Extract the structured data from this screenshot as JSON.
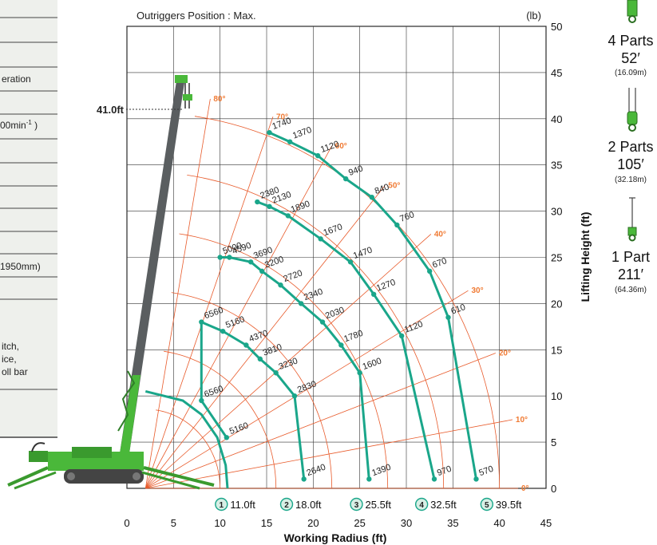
{
  "panel": {
    "frag1": "eration",
    "frag2": "00min",
    "frag2_sup": "-1",
    "frag2_tail": " )",
    "frag3": "1950mm)",
    "frag4a": "itch,",
    "frag4b": "ice,",
    "frag4c": "oll bar"
  },
  "chart_data": {
    "type": "line",
    "title": "Outriggers Position : Max.",
    "unit_label": "(lb)",
    "xlabel": "Working Radius (ft)",
    "ylabel": "Lifting Height (ft)",
    "xlim": [
      0,
      45
    ],
    "ylim": [
      0,
      50
    ],
    "xticks": [
      0,
      5,
      10,
      15,
      20,
      25,
      30,
      35,
      40,
      45
    ],
    "yticks": [
      0,
      5,
      10,
      15,
      20,
      25,
      30,
      35,
      40,
      45,
      50
    ],
    "grid": true,
    "pivot": [
      2.0,
      0.0
    ],
    "height_marker": "41.0ft",
    "angle_labels": [
      "80°",
      "70°",
      "60°",
      "50°",
      "40°",
      "30°",
      "20°",
      "10°",
      "0°"
    ],
    "boom_lengths": [
      {
        "index": "1",
        "label": "11.0ft"
      },
      {
        "index": "2",
        "label": "18.0ft"
      },
      {
        "index": "3",
        "label": "25.5ft"
      },
      {
        "index": "4",
        "label": "32.5ft"
      },
      {
        "index": "5",
        "label": "39.5ft"
      }
    ],
    "series": [
      {
        "values": [
          {
            "x": 10.7,
            "y": 5.5,
            "load": "5160"
          },
          {
            "x": 8.0,
            "y": 9.5,
            "load": "6560"
          },
          {
            "x": 8.0,
            "y": 18.0,
            "load": "6560"
          },
          {
            "x": 10.3,
            "y": 17.0,
            "load": "5160"
          },
          {
            "x": 12.8,
            "y": 15.5,
            "load": "4370"
          },
          {
            "x": 14.3,
            "y": 14.0,
            "load": "3810"
          },
          {
            "x": 16.0,
            "y": 12.5,
            "load": "3230"
          },
          {
            "x": 18.0,
            "y": 10.0,
            "load": "2830"
          },
          {
            "x": 19.0,
            "y": 1.0,
            "load": "2640"
          }
        ]
      },
      {
        "values": [
          {
            "x": 10.0,
            "y": 25.0,
            "load": "5000"
          },
          {
            "x": 11.0,
            "y": 25.0,
            "load": "4590"
          },
          {
            "x": 13.3,
            "y": 24.5,
            "load": "3690"
          },
          {
            "x": 14.5,
            "y": 23.5,
            "load": "3200"
          },
          {
            "x": 16.5,
            "y": 22.0,
            "load": "2720"
          },
          {
            "x": 18.7,
            "y": 20.0,
            "load": "2340"
          },
          {
            "x": 21.0,
            "y": 18.0,
            "load": "2030"
          },
          {
            "x": 23.0,
            "y": 15.5,
            "load": "1780"
          },
          {
            "x": 25.0,
            "y": 12.5,
            "load": "1600"
          },
          {
            "x": 26.0,
            "y": 1.0,
            "load": "1390"
          }
        ]
      },
      {
        "values": [
          {
            "x": 14.0,
            "y": 31.0,
            "load": "2380"
          },
          {
            "x": 15.3,
            "y": 30.5,
            "load": "2130"
          },
          {
            "x": 17.3,
            "y": 29.5,
            "load": "1890"
          },
          {
            "x": 20.8,
            "y": 27.0,
            "load": "1670"
          },
          {
            "x": 24.0,
            "y": 24.5,
            "load": "1470"
          },
          {
            "x": 26.5,
            "y": 21.0,
            "load": "1270"
          },
          {
            "x": 29.5,
            "y": 16.5,
            "load": "1120"
          },
          {
            "x": 33.0,
            "y": 1.0,
            "load": "970"
          }
        ]
      },
      {
        "values": [
          {
            "x": 15.3,
            "y": 38.5,
            "load": "1740"
          },
          {
            "x": 17.5,
            "y": 37.5,
            "load": "1370"
          },
          {
            "x": 20.5,
            "y": 36.0,
            "load": "1120"
          },
          {
            "x": 23.5,
            "y": 33.5,
            "load": "940"
          },
          {
            "x": 26.3,
            "y": 31.5,
            "load": "840"
          },
          {
            "x": 29.0,
            "y": 28.5,
            "load": "760"
          },
          {
            "x": 32.5,
            "y": 23.5,
            "load": "670"
          },
          {
            "x": 34.5,
            "y": 18.5,
            "load": "610"
          },
          {
            "x": 37.5,
            "y": 1.0,
            "load": "570"
          }
        ]
      }
    ],
    "side_panel": [
      {
        "parts": "4 Parts",
        "length": "52′",
        "metric": "(16.09m)"
      },
      {
        "parts": "2 Parts",
        "length": "105′",
        "metric": "(32.18m)"
      },
      {
        "parts": "1 Part",
        "length": "211′",
        "metric": "(64.36m)"
      }
    ],
    "colors": {
      "curve": "#1aa68a",
      "grid": "#e85a2a",
      "angle_text": "#f07a33",
      "crane": "#4ab83a",
      "boom": "#5a5e60"
    }
  }
}
